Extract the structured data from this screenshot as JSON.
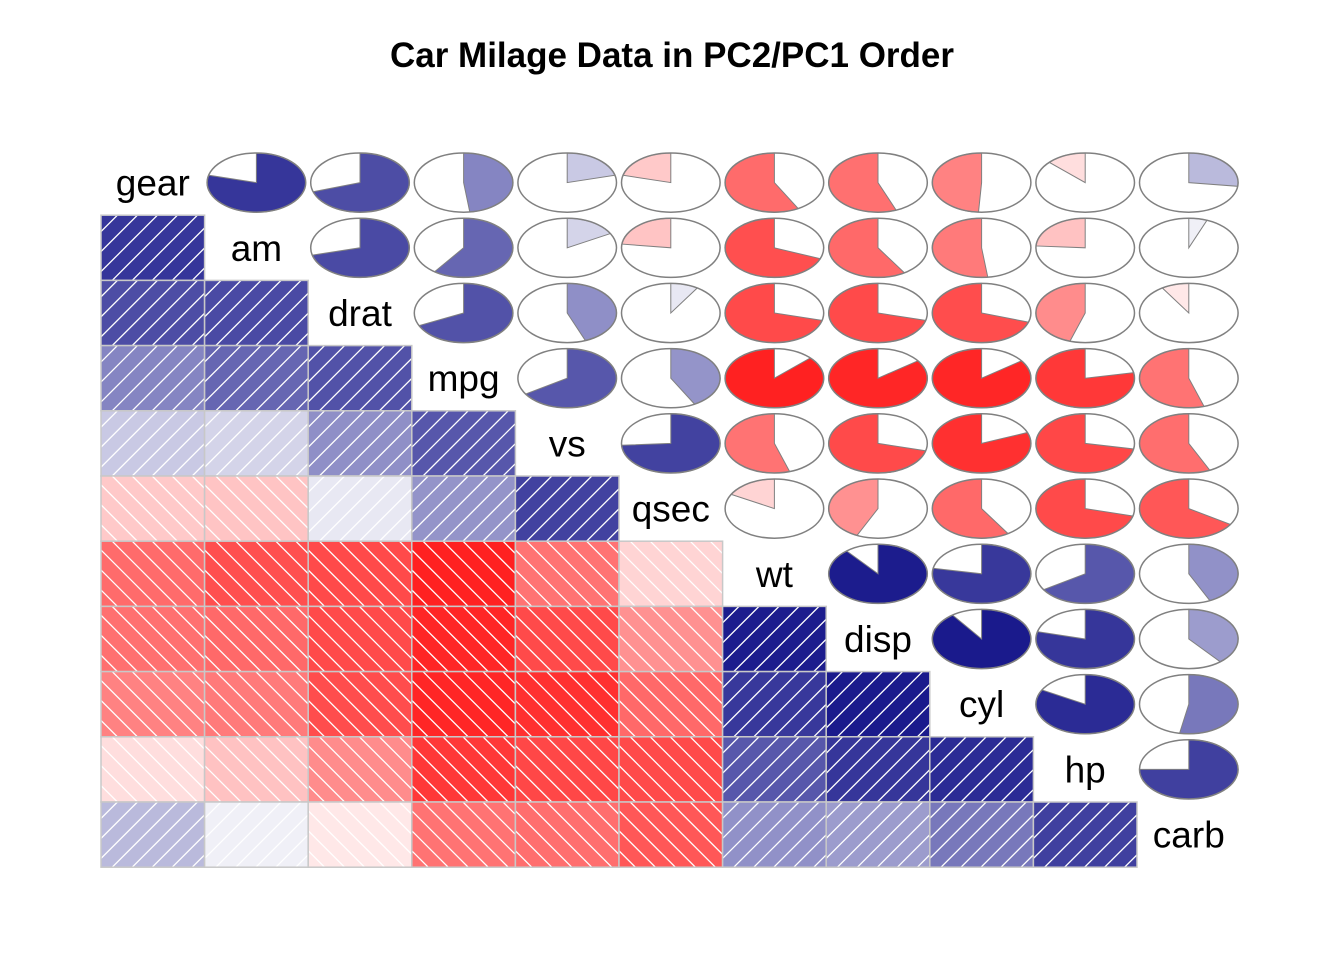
{
  "chart_data": {
    "type": "heatmap",
    "title": "Car Milage Data in PC2/PC1 Order",
    "variables": [
      "gear",
      "am",
      "drat",
      "mpg",
      "vs",
      "qsec",
      "wt",
      "disp",
      "cyl",
      "hp",
      "carb"
    ],
    "lower_panel": "shade",
    "upper_panel": "pie",
    "color_scale": {
      "negative": "#ff0000",
      "zero": "#ffffff",
      "positive": "#00007f"
    },
    "correlations": [
      [
        1.0,
        0.79,
        0.7,
        0.48,
        0.21,
        -0.21,
        -0.58,
        -0.56,
        -0.49,
        -0.13,
        0.27
      ],
      [
        0.79,
        1.0,
        0.71,
        0.6,
        0.17,
        -0.23,
        -0.69,
        -0.59,
        -0.52,
        -0.24,
        0.06
      ],
      [
        0.7,
        0.71,
        1.0,
        0.68,
        0.44,
        0.09,
        -0.71,
        -0.71,
        -0.7,
        -0.45,
        -0.09
      ],
      [
        0.48,
        0.6,
        0.68,
        1.0,
        0.66,
        0.42,
        -0.87,
        -0.85,
        -0.85,
        -0.78,
        -0.55
      ],
      [
        0.21,
        0.17,
        0.44,
        0.66,
        1.0,
        0.74,
        -0.55,
        -0.71,
        -0.81,
        -0.72,
        -0.57
      ],
      [
        -0.21,
        -0.23,
        0.09,
        0.42,
        0.74,
        1.0,
        -0.17,
        -0.43,
        -0.59,
        -0.71,
        -0.66
      ],
      [
        -0.58,
        -0.69,
        -0.71,
        -0.87,
        -0.55,
        -0.17,
        1.0,
        0.89,
        0.78,
        0.66,
        0.43
      ],
      [
        -0.56,
        -0.59,
        -0.71,
        -0.85,
        -0.71,
        -0.43,
        0.89,
        1.0,
        0.9,
        0.79,
        0.39
      ],
      [
        -0.49,
        -0.52,
        -0.7,
        -0.85,
        -0.81,
        -0.59,
        0.78,
        0.9,
        1.0,
        0.83,
        0.53
      ],
      [
        -0.13,
        -0.24,
        -0.45,
        -0.78,
        -0.72,
        -0.71,
        0.66,
        0.79,
        0.83,
        1.0,
        0.75
      ],
      [
        0.27,
        0.06,
        -0.09,
        -0.55,
        -0.57,
        -0.66,
        0.43,
        0.39,
        0.53,
        0.75,
        1.0
      ]
    ]
  }
}
